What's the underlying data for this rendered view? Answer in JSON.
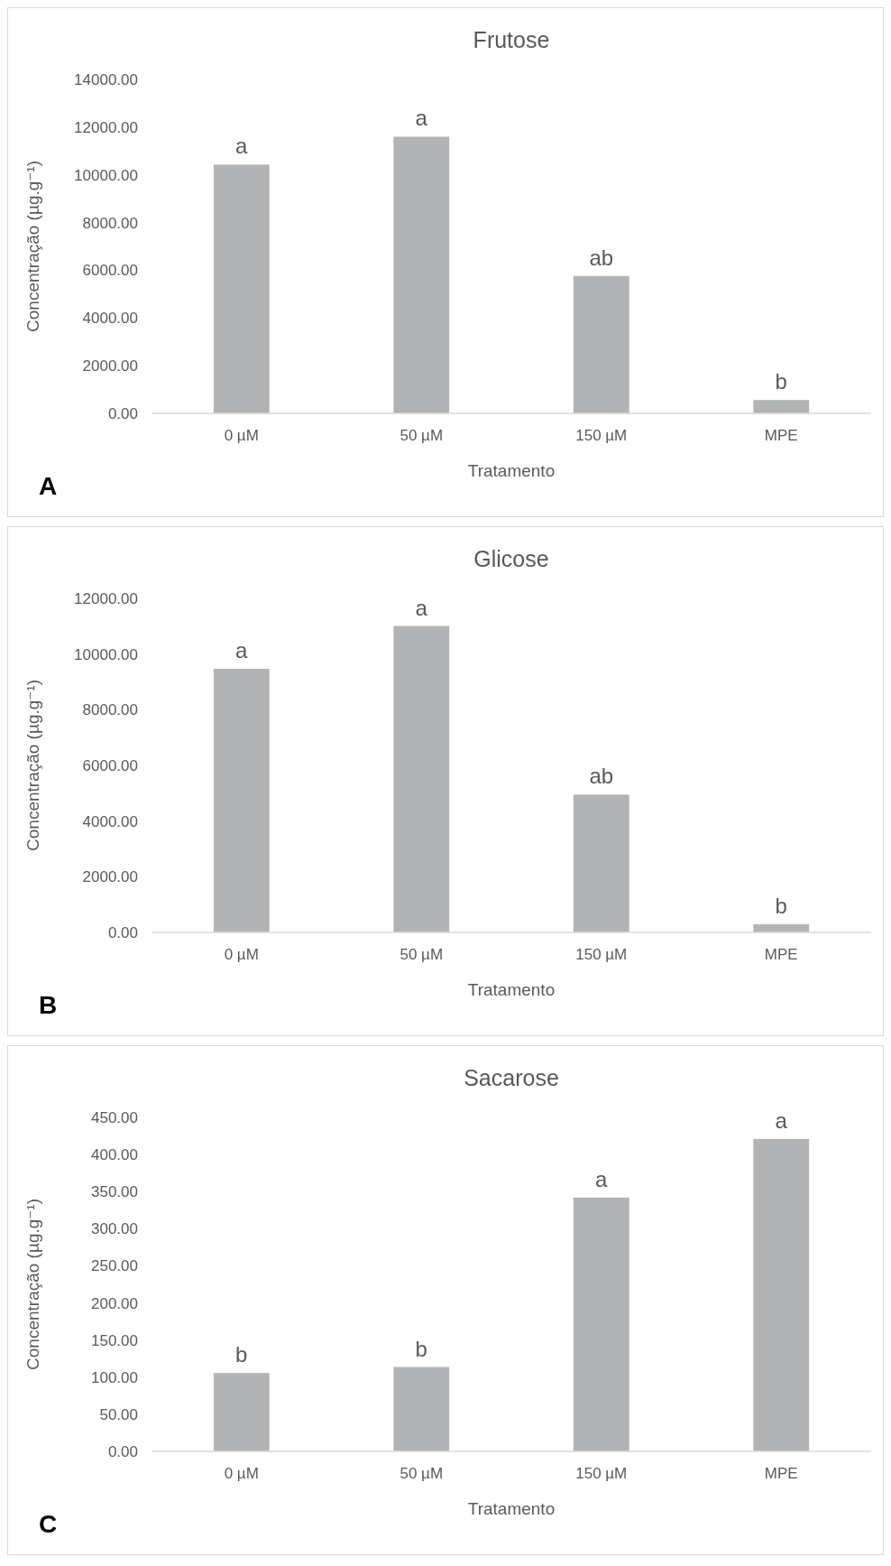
{
  "chart_data": [
    {
      "type": "bar",
      "title": "Frutose",
      "xlabel": "Tratamento",
      "ylabel": "Concentração (µg.g⁻¹)",
      "categories": [
        "0 µM",
        "50 µM",
        "150 µM",
        "MPE"
      ],
      "values": [
        10430,
        11600,
        5760,
        560
      ],
      "color": "#b2b3b4",
      "ylim": [
        0,
        14000
      ],
      "yticks": [
        {
          "value": 0,
          "label": "0.00"
        },
        {
          "value": 2000,
          "label": "2000.00"
        },
        {
          "value": 4000,
          "label": "4000.00"
        },
        {
          "value": 6000,
          "label": "6000.00"
        },
        {
          "value": 8000,
          "label": "8000.00"
        },
        {
          "value": 10000,
          "label": "10000.00"
        },
        {
          "value": 12000,
          "label": "12000.00"
        },
        {
          "value": 14000,
          "label": "14000.00"
        }
      ],
      "annotations": [
        {
          "text": "a",
          "x": "0 µM",
          "y": 10430
        },
        {
          "text": "a",
          "x": "50 µM",
          "y": 11600
        },
        {
          "text": "ab",
          "x": "150 µM",
          "y": 5760
        },
        {
          "text": "b",
          "x": "MPE",
          "y": 560
        },
        "A"
      ]
    },
    {
      "type": "bar",
      "title": "Glicose",
      "xlabel": "Tratamento",
      "ylabel": "Concentração (µg.g⁻¹)",
      "categories": [
        "0 µM",
        "50 µM",
        "150 µM",
        "MPE"
      ],
      "values": [
        9470,
        11010,
        4950,
        290
      ],
      "color": "#b2b3b4",
      "ylim": [
        0,
        12000
      ],
      "yticks": [
        {
          "value": 0,
          "label": "0.00"
        },
        {
          "value": 2000,
          "label": "2000.00"
        },
        {
          "value": 4000,
          "label": "4000.00"
        },
        {
          "value": 6000,
          "label": "6000.00"
        },
        {
          "value": 8000,
          "label": "8000.00"
        },
        {
          "value": 10000,
          "label": "10000.00"
        },
        {
          "value": 12000,
          "label": "12000.00"
        }
      ],
      "annotations": [
        {
          "text": "a",
          "x": "0 µM",
          "y": 9470
        },
        {
          "text": "a",
          "x": "50 µM",
          "y": 11010
        },
        {
          "text": "ab",
          "x": "150 µM",
          "y": 4950
        },
        {
          "text": "b",
          "x": "MPE",
          "y": 290
        },
        "B"
      ]
    },
    {
      "type": "bar",
      "title": "Sacarose",
      "xlabel": "Tratamento",
      "ylabel": "Concentração (µg.g⁻¹)",
      "categories": [
        "0 µM",
        "50 µM",
        "150 µM",
        "MPE"
      ],
      "values": [
        105.6,
        113.7,
        342,
        421
      ],
      "color": "#b2b3b4",
      "ylim": [
        0,
        450
      ],
      "yticks": [
        {
          "value": 0,
          "label": "0.00"
        },
        {
          "value": 50,
          "label": "50.00"
        },
        {
          "value": 100,
          "label": "100.00"
        },
        {
          "value": 150,
          "label": "150.00"
        },
        {
          "value": 200,
          "label": "200.00"
        },
        {
          "value": 250,
          "label": "250.00"
        },
        {
          "value": 300,
          "label": "300.00"
        },
        {
          "value": 350,
          "label": "350.00"
        },
        {
          "value": 400,
          "label": "400.00"
        },
        {
          "value": 450,
          "label": "450.00"
        }
      ],
      "annotations": [
        {
          "text": "b",
          "x": "0 µM",
          "y": 105.6
        },
        {
          "text": "b",
          "x": "50 µM",
          "y": 113.7
        },
        {
          "text": "a",
          "x": "150 µM",
          "y": 342
        },
        {
          "text": "a",
          "x": "MPE",
          "y": 421
        },
        "C"
      ]
    }
  ]
}
